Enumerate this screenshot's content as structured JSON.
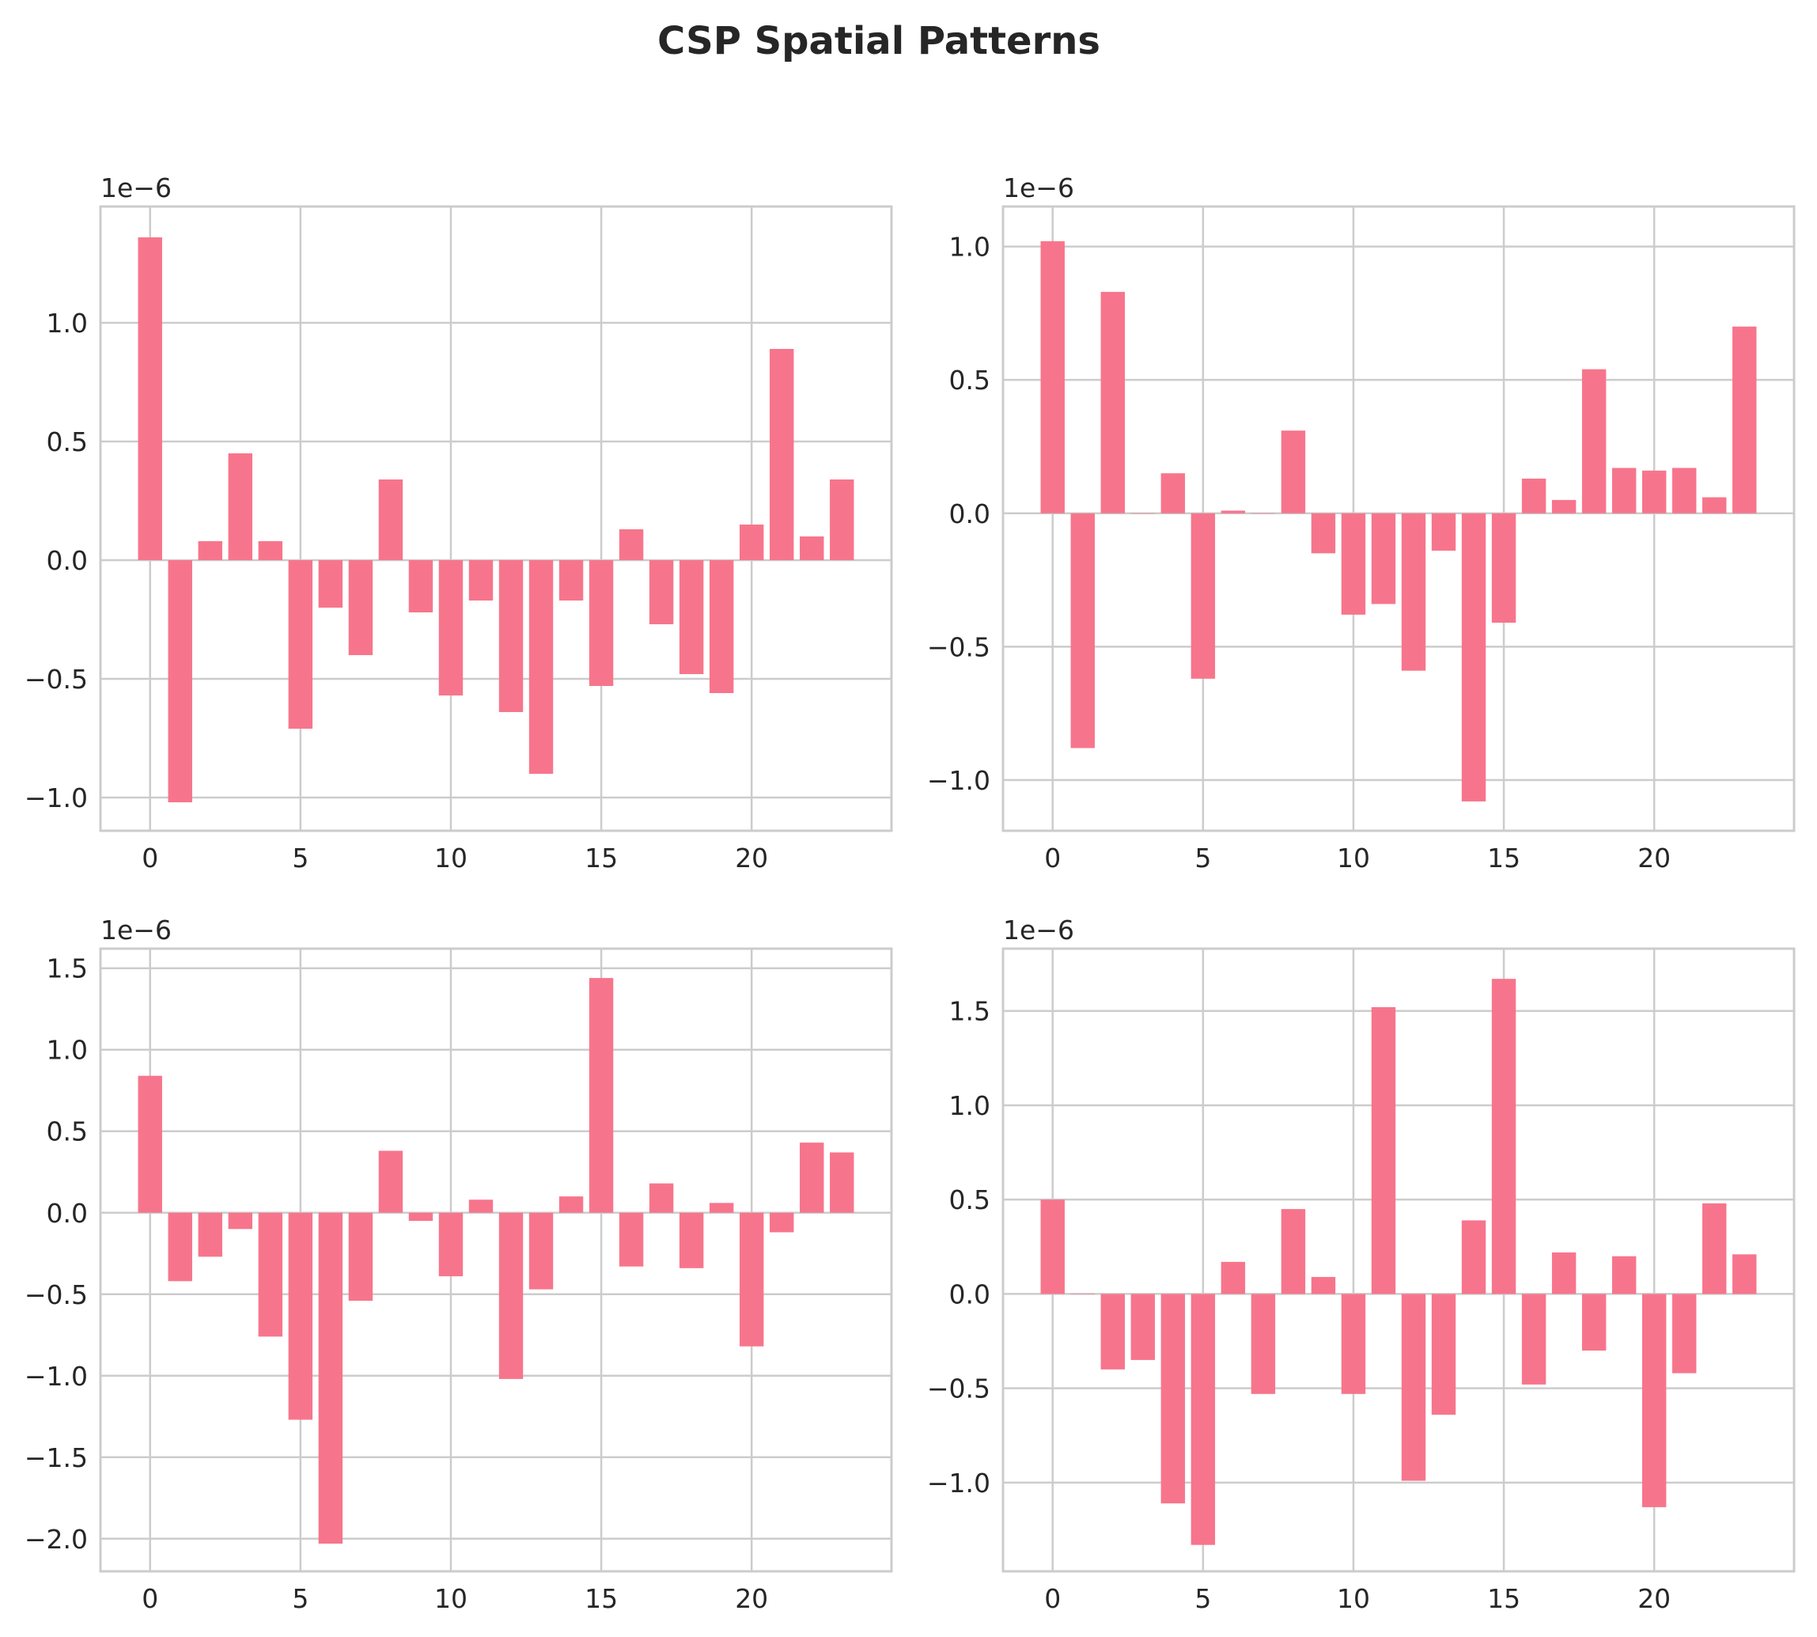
{
  "figure_title": "CSP Spatial Patterns",
  "colors": {
    "bar": "#f7758c",
    "grid": "#cccccc",
    "text": "#262626",
    "background": "#ffffff"
  },
  "chart_data": [
    {
      "type": "bar",
      "title": "",
      "offset_text": "1e−6",
      "x": [
        0,
        1,
        2,
        3,
        4,
        5,
        6,
        7,
        8,
        9,
        10,
        11,
        12,
        13,
        14,
        15,
        16,
        17,
        18,
        19,
        20,
        21,
        22,
        23
      ],
      "values": [
        1.36,
        -1.02,
        0.08,
        0.45,
        0.08,
        -0.71,
        -0.2,
        -0.4,
        0.34,
        -0.22,
        -0.57,
        -0.17,
        -0.64,
        -0.9,
        -0.17,
        -0.53,
        0.13,
        -0.27,
        -0.48,
        -0.56,
        0.15,
        0.89,
        0.1,
        0.34
      ],
      "xlim": [
        -1.65,
        24.65
      ],
      "ylim": [
        -1.14,
        1.49
      ],
      "xticks": [
        0,
        5,
        10,
        15,
        20
      ],
      "yticks": [
        -1.0,
        -0.5,
        0.0,
        0.5,
        1.0
      ],
      "xtick_labels": [
        "0",
        "5",
        "10",
        "15",
        "20"
      ],
      "ytick_labels": [
        "−1.0",
        "−0.5",
        "0.0",
        "0.5",
        "1.0"
      ],
      "grid": true
    },
    {
      "type": "bar",
      "title": "",
      "offset_text": "1e−6",
      "x": [
        0,
        1,
        2,
        3,
        4,
        5,
        6,
        7,
        8,
        9,
        10,
        11,
        12,
        13,
        14,
        15,
        16,
        17,
        18,
        19,
        20,
        21,
        22,
        23
      ],
      "values": [
        1.02,
        -0.88,
        0.83,
        0.0,
        0.15,
        -0.62,
        0.01,
        0.0,
        0.31,
        -0.15,
        -0.38,
        -0.34,
        -0.59,
        -0.14,
        -1.08,
        -0.41,
        0.13,
        0.05,
        0.54,
        0.17,
        0.16,
        0.17,
        0.06,
        0.7
      ],
      "xlim": [
        -1.65,
        24.65
      ],
      "ylim": [
        -1.19,
        1.15
      ],
      "xticks": [
        0,
        5,
        10,
        15,
        20
      ],
      "yticks": [
        -1.0,
        -0.5,
        0.0,
        0.5,
        1.0
      ],
      "xtick_labels": [
        "0",
        "5",
        "10",
        "15",
        "20"
      ],
      "ytick_labels": [
        "−1.0",
        "−0.5",
        "0.0",
        "0.5",
        "1.0"
      ],
      "grid": true
    },
    {
      "type": "bar",
      "title": "",
      "offset_text": "1e−6",
      "x": [
        0,
        1,
        2,
        3,
        4,
        5,
        6,
        7,
        8,
        9,
        10,
        11,
        12,
        13,
        14,
        15,
        16,
        17,
        18,
        19,
        20,
        21,
        22,
        23
      ],
      "values": [
        0.84,
        -0.42,
        -0.27,
        -0.1,
        -0.76,
        -1.27,
        -2.03,
        -0.54,
        0.38,
        -0.05,
        -0.39,
        0.08,
        -1.02,
        -0.47,
        0.1,
        1.44,
        -0.33,
        0.18,
        -0.34,
        0.06,
        -0.82,
        -0.12,
        0.43,
        0.37
      ],
      "xlim": [
        -1.65,
        24.65
      ],
      "ylim": [
        -2.2,
        1.62
      ],
      "xticks": [
        0,
        5,
        10,
        15,
        20
      ],
      "yticks": [
        -2.0,
        -1.5,
        -1.0,
        -0.5,
        0.0,
        0.5,
        1.0,
        1.5
      ],
      "xtick_labels": [
        "0",
        "5",
        "10",
        "15",
        "20"
      ],
      "ytick_labels": [
        "−2.0",
        "−1.5",
        "−1.0",
        "−0.5",
        "0.0",
        "0.5",
        "1.0",
        "1.5"
      ],
      "grid": true
    },
    {
      "type": "bar",
      "title": "",
      "offset_text": "1e−6",
      "x": [
        0,
        1,
        2,
        3,
        4,
        5,
        6,
        7,
        8,
        9,
        10,
        11,
        12,
        13,
        14,
        15,
        16,
        17,
        18,
        19,
        20,
        21,
        22,
        23
      ],
      "values": [
        0.5,
        0.0,
        -0.4,
        -0.35,
        -1.11,
        -1.33,
        0.17,
        -0.53,
        0.45,
        0.09,
        -0.53,
        1.52,
        -0.99,
        -0.64,
        0.39,
        1.67,
        -0.48,
        0.22,
        -0.3,
        0.2,
        -1.13,
        -0.42,
        0.48,
        0.21
      ],
      "xlim": [
        -1.65,
        24.65
      ],
      "ylim": [
        -1.47,
        1.83
      ],
      "xticks": [
        0,
        5,
        10,
        15,
        20
      ],
      "yticks": [
        -1.0,
        -0.5,
        0.0,
        0.5,
        1.0,
        1.5
      ],
      "xtick_labels": [
        "0",
        "5",
        "10",
        "15",
        "20"
      ],
      "ytick_labels": [
        "−1.0",
        "−0.5",
        "0.0",
        "0.5",
        "1.0",
        "1.5"
      ],
      "grid": true
    }
  ]
}
